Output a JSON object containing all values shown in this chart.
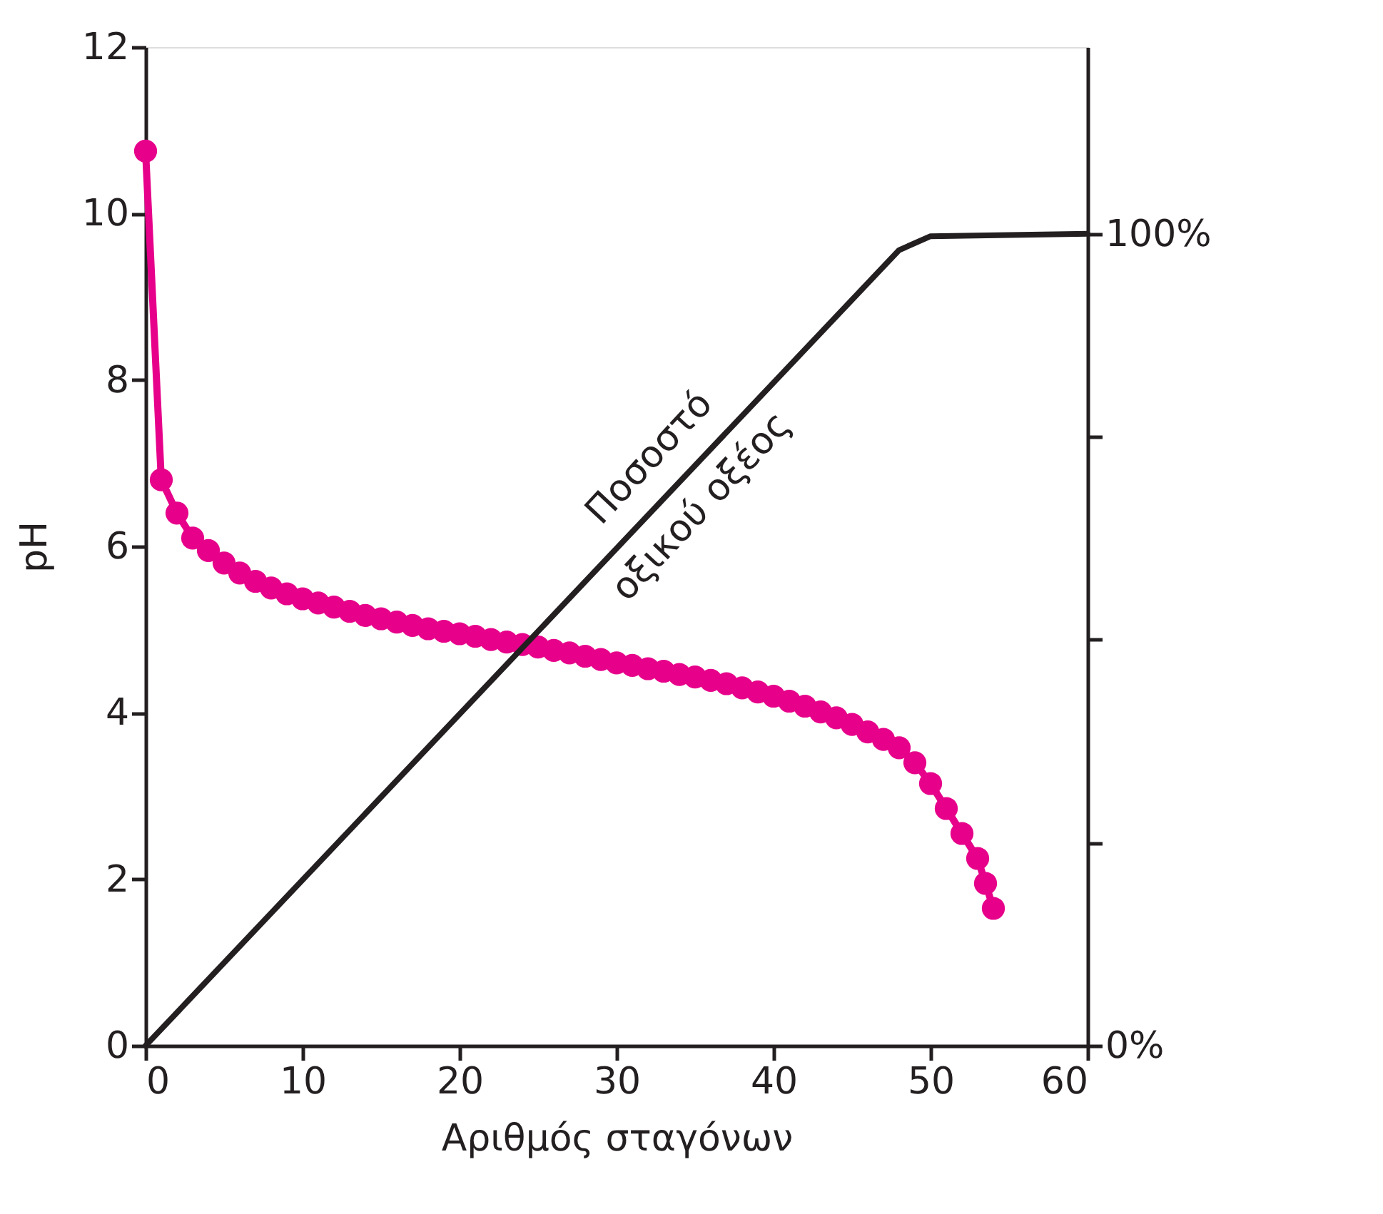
{
  "chart_data": {
    "type": "line",
    "xlabel": "Αριθμός σταγόνων",
    "ylabel": "pH",
    "xlim": [
      0,
      60
    ],
    "xticks": [
      0,
      10,
      20,
      30,
      40,
      50,
      60
    ],
    "ylim": [
      0,
      12
    ],
    "yticks": [
      0,
      2,
      4,
      6,
      8,
      10,
      12
    ],
    "y2lim": [
      0,
      123
    ],
    "y2ticks": [
      {
        "value": 0,
        "label": "0%"
      },
      {
        "value": 25,
        "label": null
      },
      {
        "value": 50,
        "label": null
      },
      {
        "value": 75,
        "label": null
      },
      {
        "value": 100,
        "label": "100%"
      }
    ],
    "grid": false,
    "series": [
      {
        "marker": "circle",
        "color": "#e6008a",
        "x": [
          0,
          1,
          2,
          3,
          4,
          5,
          6,
          7,
          8,
          9,
          10,
          11,
          12,
          13,
          14,
          15,
          16,
          17,
          18,
          19,
          20,
          21,
          22,
          23,
          24,
          25,
          26,
          27,
          28,
          29,
          30,
          31,
          32,
          33,
          34,
          35,
          36,
          37,
          38,
          39,
          40,
          41,
          42,
          43,
          44,
          45,
          46,
          47,
          48,
          49,
          50,
          51,
          52,
          53,
          53.5,
          54
        ],
        "values": [
          10.75,
          6.8,
          6.4,
          6.1,
          5.95,
          5.8,
          5.68,
          5.58,
          5.5,
          5.43,
          5.37,
          5.32,
          5.27,
          5.22,
          5.17,
          5.13,
          5.09,
          5.05,
          5.01,
          4.98,
          4.95,
          4.92,
          4.88,
          4.85,
          4.82,
          4.79,
          4.75,
          4.72,
          4.68,
          4.64,
          4.6,
          4.57,
          4.53,
          4.5,
          4.46,
          4.43,
          4.39,
          4.35,
          4.3,
          4.25,
          4.2,
          4.14,
          4.08,
          4.01,
          3.94,
          3.86,
          3.77,
          3.68,
          3.58,
          3.4,
          3.15,
          2.85,
          2.55,
          2.25,
          1.95,
          1.65
        ]
      },
      {
        "marker": "none",
        "axis": "y2",
        "color": "#231f20",
        "x": [
          0,
          48,
          50,
          60
        ],
        "values": [
          0,
          98,
          99.7,
          100
        ]
      }
    ],
    "annotations": [
      "Ποσοστό\nοξικού οξέος"
    ]
  }
}
